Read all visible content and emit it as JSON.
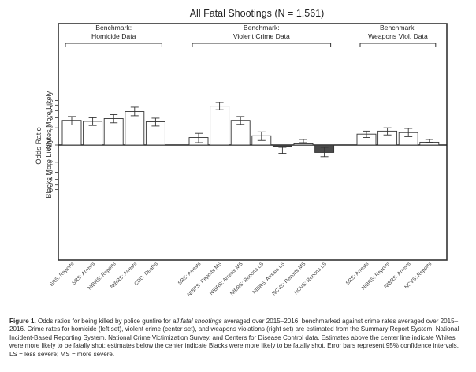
{
  "chart_data": {
    "type": "bar",
    "title": "All Fatal Shootings (N = 1,561)",
    "ylabel": "Odds Ratio",
    "direction_labels": {
      "above": "Whites More Likely",
      "below": "Blacks More Likely"
    },
    "y_scale": "log",
    "y_ticks_above": [
      "6",
      "5",
      "4",
      "3",
      "2"
    ],
    "y_tick_center": "1",
    "y_ticks_below": [
      "2",
      "3",
      "4",
      "5",
      "6"
    ],
    "groups": [
      {
        "label": "Benchmark:\nHomicide Data",
        "bars": [
          {
            "category": "SRS: Reports",
            "value": 2.7,
            "ci": [
              2.25,
              3.15
            ],
            "favors": "whites"
          },
          {
            "category": "SRS: Arrests",
            "value": 2.6,
            "ci": [
              2.2,
              3.0
            ],
            "favors": "whites"
          },
          {
            "category": "NIBRS: Reports",
            "value": 2.9,
            "ci": [
              2.45,
              3.4
            ],
            "favors": "whites"
          },
          {
            "category": "NIBRS: Arrests",
            "value": 3.85,
            "ci": [
              3.25,
              4.6
            ],
            "favors": "whites"
          },
          {
            "category": "CDC: Deaths",
            "value": 2.55,
            "ci": [
              2.15,
              2.95
            ],
            "favors": "whites"
          }
        ]
      },
      {
        "label": "Benchmark:\nViolent Crime Data",
        "bars": [
          {
            "category": "SRS: Arrests",
            "value": 1.35,
            "ci": [
              1.1,
              1.6
            ],
            "favors": "whites"
          },
          {
            "category": "NIBRS: Reports MS",
            "value": 4.8,
            "ci": [
              4.15,
              5.55
            ],
            "favors": "whites"
          },
          {
            "category": "NIBRS: Arrests MS",
            "value": 2.7,
            "ci": [
              2.3,
              3.15
            ],
            "favors": "whites"
          },
          {
            "category": "NIBRS: Reports LS",
            "value": 1.45,
            "ci": [
              1.2,
              1.7
            ],
            "favors": "whites"
          },
          {
            "category": "NIBRS: Arrests LS",
            "value": 1.05,
            "ci": [
              1.1,
              1.4
            ],
            "favors": "blacks"
          },
          {
            "category": "NCVS: Reports MS",
            "value": 1.05,
            "ci": [
              1.1,
              1.25
            ],
            "favors": "whites"
          },
          {
            "category": "NCVS: Reports LS",
            "value": 1.35,
            "ci": [
              1.1,
              1.6
            ],
            "favors": "blacks"
          }
        ]
      },
      {
        "label": "Benchmark:\nWeapons Viol. Data",
        "bars": [
          {
            "category": "SRS: Arrests",
            "value": 1.55,
            "ci": [
              1.35,
              1.75
            ],
            "favors": "whites"
          },
          {
            "category": "NIBRS: Reports",
            "value": 1.75,
            "ci": [
              1.5,
              2.0
            ],
            "favors": "whites"
          },
          {
            "category": "NIBRS: Arrests",
            "value": 1.65,
            "ci": [
              1.4,
              1.95
            ],
            "favors": "whites"
          },
          {
            "category": "NCVS: Reports",
            "value": 1.12,
            "ci": [
              1.1,
              1.25
            ],
            "favors": "whites"
          }
        ]
      }
    ],
    "colors": {
      "whites_bar": "#ffffff",
      "blacks_bar": "#4a4a4a",
      "stroke": "#333333"
    }
  },
  "caption": {
    "figure_label": "Figure 1.",
    "text_before_italic": " Odds ratios for being killed by police gunfire for ",
    "italic_text": "all fatal shootings",
    "text_after_italic": " averaged over 2015–2016, benchmarked against crime rates averaged over 2015–2016. Crime rates for homicide (left set), violent crime (center set), and weapons violations (right set) are estimated from the Summary Report System, National Incident-Based Reporting System, National Crime Victimization Survey, and Centers for Disease Control data. Estimates above the center line indicate Whites were more likely to be fatally shot; estimates below the center indicate Blacks were more likely to be fatally shot. Error bars represent 95% confidence intervals. LS = less severe; MS = more severe."
  }
}
